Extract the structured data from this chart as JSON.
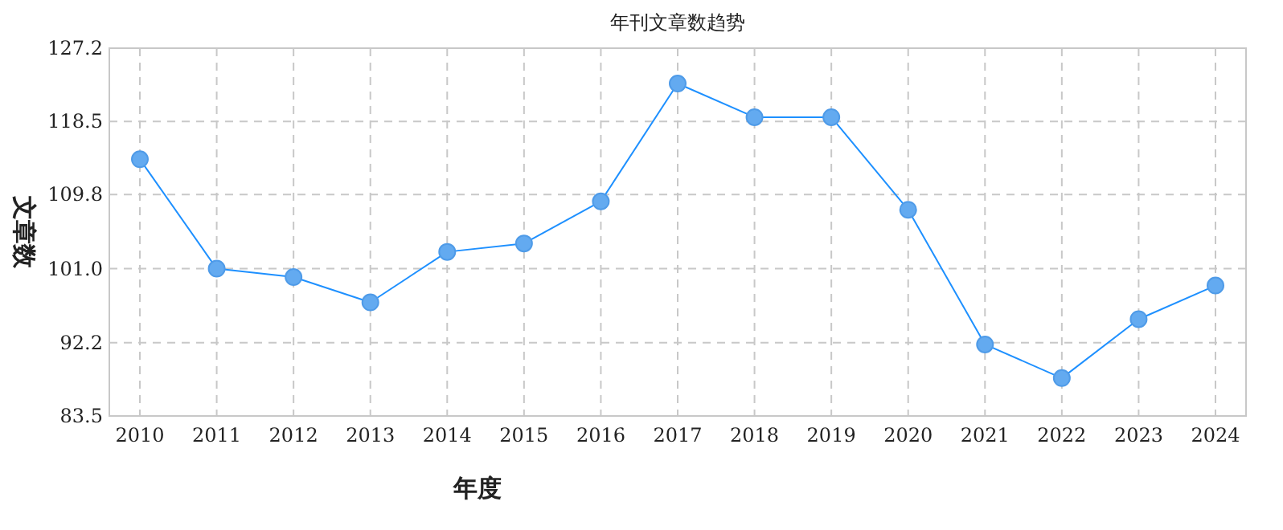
{
  "chart_data": {
    "type": "line",
    "title": "年刊文章数趋势",
    "xlabel": "年度",
    "ylabel": "文章数",
    "categories": [
      "2010",
      "2011",
      "2012",
      "2013",
      "2014",
      "2015",
      "2016",
      "2017",
      "2018",
      "2019",
      "2020",
      "2021",
      "2022",
      "2023",
      "2024"
    ],
    "series": [
      {
        "color": "#1e90ff",
        "values": [
          114,
          101,
          100,
          97,
          103,
          104,
          109,
          123,
          119,
          119,
          108,
          92,
          88,
          95,
          99
        ]
      }
    ],
    "ylim": [
      83.5,
      127.2
    ],
    "yticks": [
      {
        "value": 83.5,
        "label": "83.5"
      },
      {
        "value": 92.2,
        "label": "92.2"
      },
      {
        "value": 101.0,
        "label": "101.0"
      },
      {
        "value": 109.8,
        "label": "109.8"
      },
      {
        "value": 118.5,
        "label": "118.5"
      },
      {
        "value": 127.2,
        "label": "127.2"
      }
    ],
    "grid": true,
    "marker": "circle",
    "line_style": "solid"
  }
}
